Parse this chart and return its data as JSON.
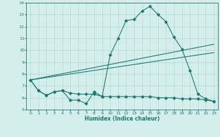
{
  "title": "",
  "xlabel": "Humidex (Indice chaleur)",
  "ylabel": "",
  "x": [
    0,
    1,
    2,
    3,
    4,
    5,
    6,
    7,
    8,
    9,
    10,
    11,
    12,
    13,
    14,
    15,
    16,
    17,
    18,
    19,
    20,
    21,
    22,
    23
  ],
  "line1": [
    7.5,
    6.6,
    6.2,
    6.5,
    6.6,
    5.8,
    5.8,
    5.5,
    6.5,
    6.1,
    9.6,
    11.0,
    12.5,
    12.6,
    13.3,
    13.7,
    13.0,
    12.4,
    11.1,
    10.1,
    8.3,
    6.3,
    5.9,
    5.7
  ],
  "line2": [
    7.5,
    6.6,
    6.2,
    6.5,
    6.6,
    6.4,
    6.3,
    6.3,
    6.3,
    6.1,
    6.1,
    6.1,
    6.1,
    6.1,
    6.1,
    6.1,
    6.0,
    6.0,
    6.0,
    5.9,
    5.9,
    5.9,
    5.8,
    5.7
  ],
  "line3_x": [
    0,
    23
  ],
  "line3_y": [
    7.5,
    10.5
  ],
  "line4_x": [
    0,
    23
  ],
  "line4_y": [
    7.5,
    9.8
  ],
  "color": "#1a7a6e",
  "bg_color": "#d4eeeb",
  "grid_color": "#aed4d0",
  "xlim": [
    0,
    23
  ],
  "ylim": [
    5.0,
    14.0
  ],
  "yticks": [
    5,
    6,
    7,
    8,
    9,
    10,
    11,
    12,
    13,
    14
  ],
  "xticks": [
    0,
    1,
    2,
    3,
    4,
    5,
    6,
    7,
    8,
    9,
    10,
    11,
    12,
    13,
    14,
    15,
    16,
    17,
    18,
    19,
    20,
    21,
    22,
    23
  ]
}
